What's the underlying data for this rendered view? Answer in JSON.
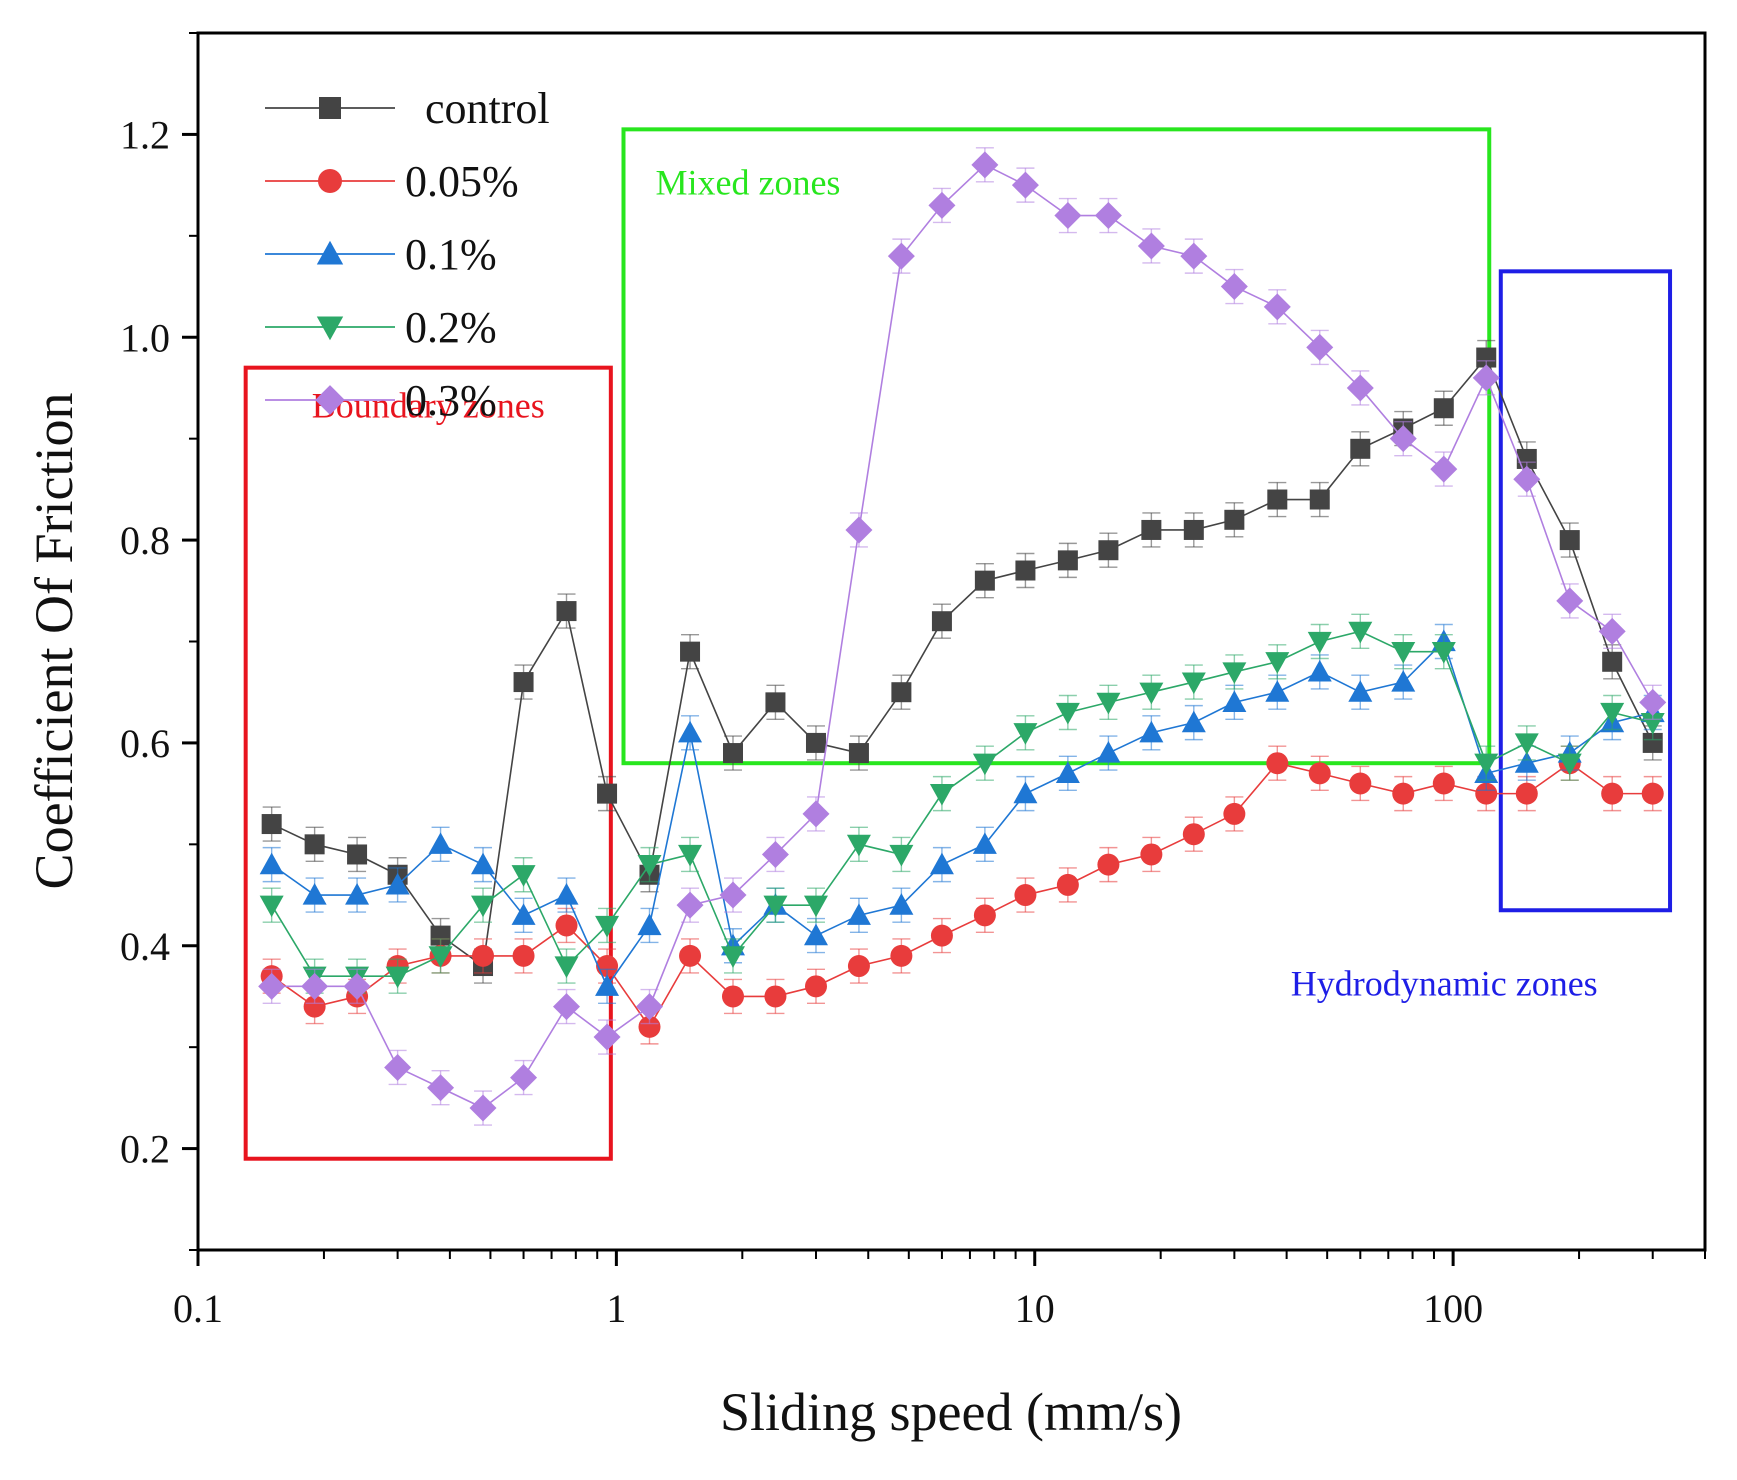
{
  "chart_data": {
    "type": "line",
    "xscale": "log",
    "title": "",
    "xlabel": "Sliding speed (mm/s)",
    "ylabel": "Coefficient Of Friction",
    "xlim": [
      0.1,
      400
    ],
    "ylim": [
      0.1,
      1.3
    ],
    "xticks": [
      {
        "value": 0.1,
        "label": "0.1"
      },
      {
        "value": 1,
        "label": "1"
      },
      {
        "value": 10,
        "label": "10"
      },
      {
        "value": 100,
        "label": "100"
      }
    ],
    "yticks": [
      {
        "value": 0.2,
        "label": "0.2"
      },
      {
        "value": 0.4,
        "label": "0.4"
      },
      {
        "value": 0.6,
        "label": "0.6"
      },
      {
        "value": 0.8,
        "label": "0.8"
      },
      {
        "value": 1.0,
        "label": "1.0"
      },
      {
        "value": 1.2,
        "label": "1.2"
      }
    ],
    "legend_position": "top-left",
    "x": [
      0.15,
      0.19,
      0.24,
      0.3,
      0.38,
      0.48,
      0.6,
      0.76,
      0.95,
      1.2,
      1.5,
      1.9,
      2.4,
      3.0,
      3.8,
      4.8,
      6.0,
      7.6,
      9.5,
      12,
      15,
      19,
      24,
      30,
      38,
      48,
      60,
      76,
      95,
      120,
      150,
      190,
      240,
      300
    ],
    "series": [
      {
        "name": "control",
        "marker": "square",
        "color": "#444444",
        "values": [
          0.52,
          0.5,
          0.49,
          0.47,
          0.41,
          0.38,
          0.66,
          0.73,
          0.55,
          0.47,
          0.69,
          0.59,
          0.64,
          0.6,
          0.59,
          0.65,
          0.72,
          0.76,
          0.77,
          0.78,
          0.79,
          0.81,
          0.81,
          0.82,
          0.84,
          0.84,
          0.89,
          0.91,
          0.93,
          0.98,
          0.88,
          0.8,
          0.68,
          0.6
        ]
      },
      {
        "name": "0.05%",
        "marker": "circle",
        "color": "#e83c3c",
        "values": [
          0.37,
          0.34,
          0.35,
          0.38,
          0.39,
          0.39,
          0.39,
          0.42,
          0.38,
          0.32,
          0.39,
          0.35,
          0.35,
          0.36,
          0.38,
          0.39,
          0.41,
          0.43,
          0.45,
          0.46,
          0.48,
          0.49,
          0.51,
          0.53,
          0.58,
          0.57,
          0.56,
          0.55,
          0.56,
          0.55,
          0.55,
          0.58,
          0.55,
          0.55
        ]
      },
      {
        "name": "0.1%",
        "marker": "triangle-up",
        "color": "#1f77d4",
        "values": [
          0.48,
          0.45,
          0.45,
          0.46,
          0.5,
          0.48,
          0.43,
          0.45,
          0.36,
          0.42,
          0.61,
          0.4,
          0.44,
          0.41,
          0.43,
          0.44,
          0.48,
          0.5,
          0.55,
          0.57,
          0.59,
          0.61,
          0.62,
          0.64,
          0.65,
          0.67,
          0.65,
          0.66,
          0.7,
          0.57,
          0.58,
          0.59,
          0.62,
          0.63
        ]
      },
      {
        "name": "0.2%",
        "marker": "triangle-down",
        "color": "#2ca868",
        "values": [
          0.44,
          0.37,
          0.37,
          0.37,
          0.39,
          0.44,
          0.47,
          0.38,
          0.42,
          0.48,
          0.49,
          0.39,
          0.44,
          0.44,
          0.5,
          0.49,
          0.55,
          0.58,
          0.61,
          0.63,
          0.64,
          0.65,
          0.66,
          0.67,
          0.68,
          0.7,
          0.71,
          0.69,
          0.69,
          0.58,
          0.6,
          0.58,
          0.63,
          0.62
        ]
      },
      {
        "name": "0.3%",
        "marker": "diamond",
        "color": "#b07fe0",
        "values": [
          0.36,
          0.36,
          0.36,
          0.28,
          0.26,
          0.24,
          0.27,
          0.34,
          0.31,
          0.34,
          0.44,
          0.45,
          0.49,
          0.53,
          0.81,
          1.08,
          1.13,
          1.17,
          1.15,
          1.12,
          1.12,
          1.09,
          1.08,
          1.05,
          1.03,
          0.99,
          0.95,
          0.9,
          0.87,
          0.96,
          0.86,
          0.74,
          0.71,
          0.64
        ]
      }
    ],
    "annotations": [
      {
        "text": "Boundary zones",
        "color": "#e8141e",
        "x_range": [
          0.13,
          0.97
        ],
        "y_range": [
          0.19,
          0.97
        ]
      },
      {
        "text": "Mixed zones",
        "color": "#28e61e",
        "x_range": [
          1.04,
          122
        ],
        "y_range": [
          0.58,
          1.205
        ]
      },
      {
        "text": "Hydrodynamic zones",
        "color": "#1e1ee6",
        "x_range": [
          130,
          330
        ],
        "y_range": [
          0.435,
          1.065
        ]
      }
    ]
  }
}
